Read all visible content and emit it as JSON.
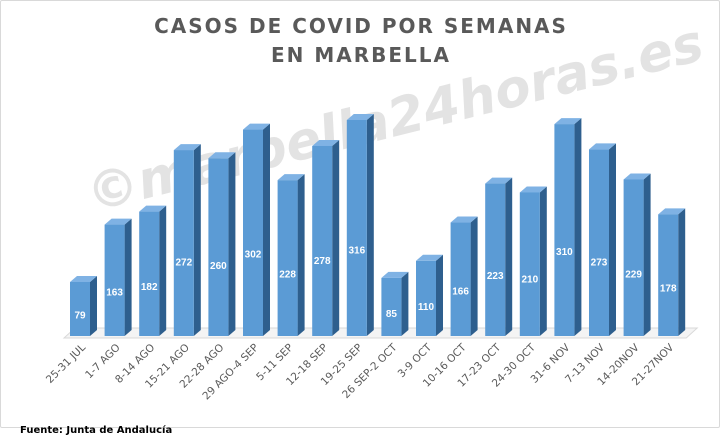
{
  "title_lines": [
    "CASOS DE COVID POR SEMANAS",
    "EN MARBELLA"
  ],
  "watermark": "©marbella24horas.es",
  "source": "Fuente: Junta de Andalucía",
  "colors": {
    "bar_front": "#5B9BD5",
    "bar_side": "#2E5F8E",
    "bar_top": "#7FB2E4",
    "label": "#ffffff",
    "axis_text": "#595959",
    "grid": "#d9d9d9"
  },
  "chart_data": {
    "type": "bar",
    "title": "CASOS DE COVID POR SEMANAS EN MARBELLA",
    "categories": [
      "25-31 JUL",
      "1-7 AGO",
      "8-14 AGO",
      "15-21 AGO",
      "22-28 AGO",
      "29 AGO-4 SEP",
      "5-11 SEP",
      "12-18 SEP",
      "19-25 SEP",
      "26 SEP-2 OCT",
      "3-9 OCT",
      "10-16 OCT",
      "17-23 OCT",
      "24-30 OCT",
      "31-6 NOV",
      "7-13 NOV",
      "14-20NOV",
      "21-27NOV"
    ],
    "values": [
      79,
      163,
      182,
      272,
      260,
      302,
      228,
      278,
      316,
      85,
      110,
      166,
      223,
      210,
      310,
      273,
      229,
      178
    ],
    "data_labels": true,
    "ylim": [
      0,
      330
    ],
    "grid": false,
    "style": "3d-column"
  }
}
